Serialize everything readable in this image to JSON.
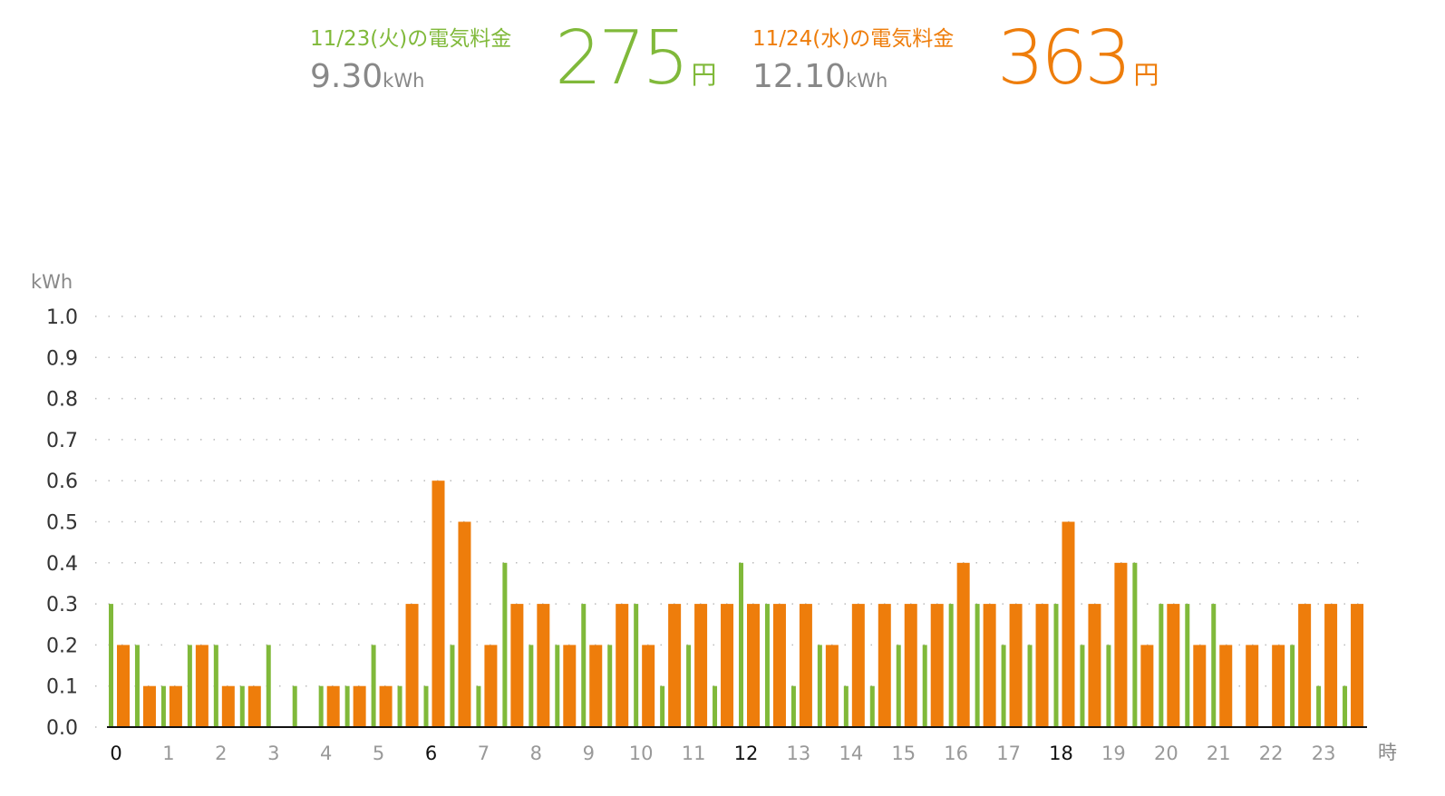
{
  "summary": [
    {
      "title": "11/23(火)の電気料金",
      "kwh": "9.30",
      "kwh_unit": "kWh",
      "amount": "275",
      "amount_unit": "円",
      "color": "#80b93a"
    },
    {
      "title": "11/24(水)の電気料金",
      "kwh": "12.10",
      "kwh_unit": "kWh",
      "amount": "363",
      "amount_unit": "円",
      "color": "#ee7d0b"
    }
  ],
  "chart_data": {
    "type": "bar",
    "y_label": "kWh",
    "x_label": "時",
    "categories": [
      "0",
      null,
      "1",
      null,
      "2",
      null,
      "3",
      null,
      "4",
      null,
      "5",
      null,
      "6",
      null,
      "7",
      null,
      "8",
      null,
      "9",
      null,
      "10",
      null,
      "11",
      null,
      "12",
      null,
      "13",
      null,
      "14",
      null,
      "15",
      null,
      "16",
      null,
      "17",
      null,
      "18",
      null,
      "19",
      null,
      "20",
      null,
      "21",
      null,
      "22",
      null,
      "23",
      null
    ],
    "emphasized_categories": [
      "0",
      "6",
      "12",
      "18"
    ],
    "series": [
      {
        "name": "11/23(火)",
        "color": "#80b93a",
        "values": [
          0.3,
          0.2,
          0.1,
          0.2,
          0.2,
          0.1,
          0.2,
          0.1,
          0.1,
          0.1,
          0.2,
          0.1,
          0.1,
          0.2,
          0.1,
          0.4,
          0.2,
          0.2,
          0.3,
          0.2,
          0.3,
          0.1,
          0.2,
          0.1,
          0.4,
          0.3,
          0.1,
          0.2,
          0.1,
          0.1,
          0.2,
          0.2,
          0.3,
          0.3,
          0.2,
          0.2,
          0.3,
          0.2,
          0.2,
          0.4,
          0.3,
          0.3,
          0.3,
          0,
          0,
          0.2,
          0.1,
          0.1
        ]
      },
      {
        "name": "11/24(水)",
        "color": "#ee7d0b",
        "values": [
          0.2,
          0.1,
          0.1,
          0.2,
          0.1,
          0.1,
          0,
          0,
          0.1,
          0.1,
          0.1,
          0.3,
          0.6,
          0.5,
          0.2,
          0.3,
          0.3,
          0.2,
          0.2,
          0.3,
          0.2,
          0.3,
          0.3,
          0.3,
          0.3,
          0.3,
          0.3,
          0.2,
          0.3,
          0.3,
          0.3,
          0.3,
          0.4,
          0.3,
          0.3,
          0.3,
          0.5,
          0.3,
          0.4,
          0.2,
          0.3,
          0.2,
          0.2,
          0.2,
          0.2,
          0.3,
          0.3,
          0.3
        ]
      }
    ],
    "ylim": [
      0,
      1
    ],
    "yticks": [
      {
        "value": 0,
        "label": "0.0"
      },
      0.1,
      0.2,
      0.3,
      0.4,
      0.5,
      0.6,
      0.7,
      0.8,
      0.9,
      {
        "value": 1,
        "label": "1.0"
      }
    ],
    "grid": true
  }
}
